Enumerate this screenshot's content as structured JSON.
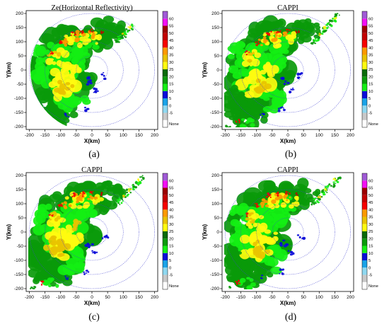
{
  "figure": {
    "colorbar": {
      "colors": [
        "#ffffff",
        "#c8c8c8",
        "#8fd8f0",
        "#1aa3e8",
        "#0b0bd9",
        "#14ef14",
        "#0a9a0a",
        "#0a6a0a",
        "#fffb0f",
        "#e8c300",
        "#fb9a00",
        "#f70000",
        "#c40000",
        "#9c0000",
        "#f20ff2",
        "#a05ad6"
      ],
      "labels": [
        "None",
        "-5",
        "0",
        "5",
        "10",
        "15",
        "20",
        "25",
        "30",
        "35",
        "40",
        "45",
        "50",
        "55",
        "60"
      ]
    },
    "panels": [
      {
        "title": "Ze(Horizontal Reflectivity)",
        "caption": "(a)"
      },
      {
        "title": "CAPPI",
        "caption": "(b)"
      },
      {
        "title": "CAPPI",
        "caption": "(c)"
      },
      {
        "title": "CAPPI",
        "caption": "(d)"
      }
    ]
  },
  "chart_data": [
    {
      "type": "heatmap",
      "title": "Ze(Horizontal Reflectivity)",
      "xlabel": "X(km)",
      "ylabel": "Y(km)",
      "xlim": [
        -210,
        210
      ],
      "ylim": [
        -210,
        210
      ],
      "xticks": [
        -200,
        -150,
        -100,
        -50,
        0,
        50,
        100,
        150,
        200
      ],
      "yticks": [
        -200,
        -150,
        -100,
        -50,
        0,
        50,
        100,
        150,
        200
      ],
      "range_rings_km": [
        50,
        100,
        150,
        200
      ],
      "colorbar_unit_levels": [
        "None",
        -5,
        0,
        5,
        10,
        15,
        20,
        25,
        30,
        35,
        40,
        45,
        50,
        55,
        60
      ],
      "caption": "(a)",
      "clip_circle": true
    },
    {
      "type": "heatmap",
      "title": "CAPPI",
      "xlabel": "X(km)",
      "ylabel": "Y(km)",
      "xlim": [
        -210,
        210
      ],
      "ylim": [
        -210,
        210
      ],
      "xticks": [
        -200,
        -150,
        -100,
        -50,
        0,
        50,
        100,
        150,
        200
      ],
      "yticks": [
        -200,
        -150,
        -100,
        -50,
        0,
        50,
        100,
        150,
        200
      ],
      "range_rings_km": [
        50,
        100,
        150,
        200
      ],
      "colorbar_unit_levels": [
        "None",
        -5,
        0,
        5,
        10,
        15,
        20,
        25,
        30,
        35,
        40,
        45,
        50,
        55,
        60
      ],
      "caption": "(b)",
      "clip_circle": false
    },
    {
      "type": "heatmap",
      "title": "CAPPI",
      "xlabel": "X(km)",
      "ylabel": "Y(km)",
      "xlim": [
        -210,
        210
      ],
      "ylim": [
        -210,
        210
      ],
      "xticks": [
        -200,
        -150,
        -100,
        -50,
        0,
        50,
        100,
        150,
        200
      ],
      "yticks": [
        -200,
        -150,
        -100,
        -50,
        0,
        50,
        100,
        150,
        200
      ],
      "range_rings_km": [
        50,
        100,
        150,
        200
      ],
      "colorbar_unit_levels": [
        "None",
        -5,
        0,
        5,
        10,
        15,
        20,
        25,
        30,
        35,
        40,
        45,
        50,
        55,
        60
      ],
      "caption": "(c)",
      "clip_circle": false
    },
    {
      "type": "heatmap",
      "title": "CAPPI",
      "xlabel": "X(km)",
      "ylabel": "Y(km)",
      "xlim": [
        -210,
        210
      ],
      "ylim": [
        -210,
        210
      ],
      "xticks": [
        -200,
        -150,
        -100,
        -50,
        0,
        50,
        100,
        150,
        200
      ],
      "yticks": [
        -200,
        -150,
        -100,
        -50,
        0,
        50,
        100,
        150,
        200
      ],
      "range_rings_km": [
        50,
        100,
        150,
        200
      ],
      "colorbar_unit_levels": [
        "None",
        -5,
        0,
        5,
        10,
        15,
        20,
        25,
        30,
        35,
        40,
        45,
        50,
        55,
        60
      ],
      "caption": "(d)",
      "clip_circle": false
    }
  ]
}
